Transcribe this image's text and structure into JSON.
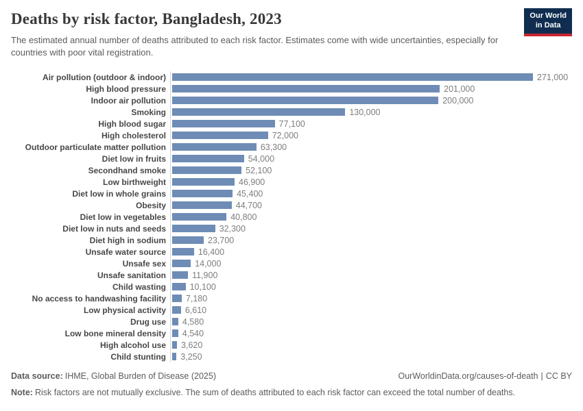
{
  "header": {
    "title": "Deaths by risk factor, Bangladesh, 2023",
    "subtitle": "The estimated annual number of deaths attributed to each risk factor. Estimates come with wide uncertainties, especially for countries with poor vital registration.",
    "logo": {
      "line1": "Our World",
      "line2": "in Data"
    }
  },
  "chart_data": {
    "type": "bar",
    "orientation": "horizontal",
    "title": "Deaths by risk factor, Bangladesh, 2023",
    "xlabel": "",
    "ylabel": "",
    "xlim": [
      0,
      271000
    ],
    "grid": false,
    "legend": "none",
    "bar_color": "#6e8cb5",
    "categories": [
      "Air pollution (outdoor & indoor)",
      "High blood pressure",
      "Indoor air pollution",
      "Smoking",
      "High blood sugar",
      "High cholesterol",
      "Outdoor particulate matter pollution",
      "Diet low in fruits",
      "Secondhand smoke",
      "Low birthweight",
      "Diet low in whole grains",
      "Obesity",
      "Diet low in vegetables",
      "Diet low in nuts and seeds",
      "Diet high in sodium",
      "Unsafe water source",
      "Unsafe sex",
      "Unsafe sanitation",
      "Child wasting",
      "No access to handwashing facility",
      "Low physical activity",
      "Drug use",
      "Low bone mineral density",
      "High alcohol use",
      "Child stunting"
    ],
    "values": [
      271000,
      201000,
      200000,
      130000,
      77100,
      72000,
      63300,
      54000,
      52100,
      46900,
      45400,
      44700,
      40800,
      32300,
      23700,
      16400,
      14000,
      11900,
      10100,
      7180,
      6610,
      4580,
      4540,
      3620,
      3250
    ],
    "value_labels": [
      "271,000",
      "201,000",
      "200,000",
      "130,000",
      "77,100",
      "72,000",
      "63,300",
      "54,000",
      "52,100",
      "46,900",
      "45,400",
      "44,700",
      "40,800",
      "32,300",
      "23,700",
      "16,400",
      "14,000",
      "11,900",
      "10,100",
      "7,180",
      "6,610",
      "4,580",
      "4,540",
      "3,620",
      "3,250"
    ]
  },
  "footer": {
    "datasource_label": "Data source:",
    "datasource_text": "IHME, Global Burden of Disease (2025)",
    "link": "OurWorldinData.org/causes-of-death",
    "separator": "|",
    "license": "CC BY",
    "note_label": "Note:",
    "note_text": "Risk factors are not mutually exclusive. The sum of deaths attributed to each risk factor can exceed the total number of deaths."
  },
  "colors": {
    "bar": "#6e8cb5",
    "axis_line": "#d7d7d7",
    "title_text": "#383838",
    "subtitle_text": "#5b5b5b",
    "category_label": "#474747",
    "value_label": "#7d7d7d",
    "logo_navy": "#102d50",
    "logo_red": "#c7252f"
  }
}
